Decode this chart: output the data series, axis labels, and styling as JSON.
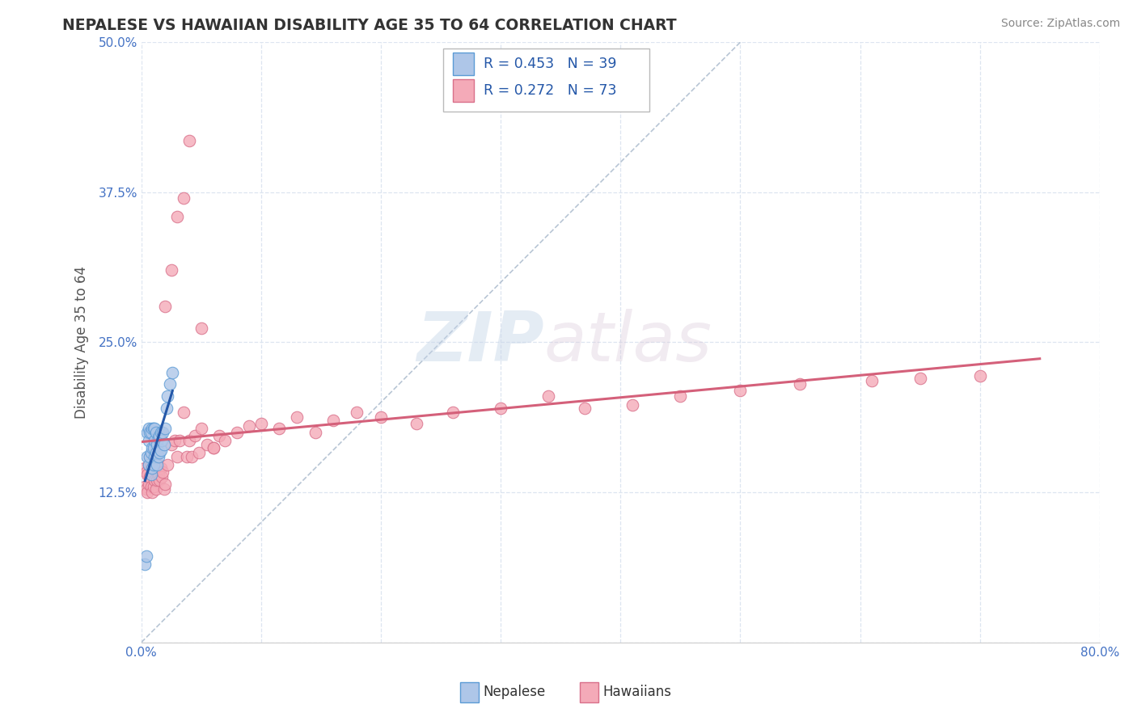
{
  "title": "NEPALESE VS HAWAIIAN DISABILITY AGE 35 TO 64 CORRELATION CHART",
  "source": "Source: ZipAtlas.com",
  "ylabel": "Disability Age 35 to 64",
  "xlim": [
    0.0,
    0.8
  ],
  "ylim": [
    0.0,
    0.5
  ],
  "xticks": [
    0.0,
    0.1,
    0.2,
    0.3,
    0.4,
    0.5,
    0.6,
    0.7,
    0.8
  ],
  "xticklabels": [
    "0.0%",
    "",
    "",
    "",
    "",
    "",
    "",
    "",
    "80.0%"
  ],
  "yticks": [
    0.0,
    0.125,
    0.25,
    0.375,
    0.5
  ],
  "yticklabels": [
    "",
    "12.5%",
    "25.0%",
    "37.5%",
    "50.0%"
  ],
  "nepalese_R": 0.453,
  "nepalese_N": 39,
  "hawaiians_R": 0.272,
  "hawaiians_N": 73,
  "nepalese_color": "#aec6e8",
  "nepalese_edge_color": "#5b9bd5",
  "hawaiians_color": "#f4aab8",
  "hawaiians_edge_color": "#d9708a",
  "nepalese_line_color": "#2457a8",
  "hawaiians_line_color": "#d4607a",
  "ref_line_color": "#b0bfd0",
  "background_color": "#ffffff",
  "grid_color": "#dde5f0",
  "watermark_zip": "ZIP",
  "watermark_atlas": "atlas",
  "nepalese_x": [
    0.003,
    0.004,
    0.005,
    0.005,
    0.006,
    0.006,
    0.006,
    0.007,
    0.007,
    0.008,
    0.008,
    0.008,
    0.009,
    0.009,
    0.009,
    0.01,
    0.01,
    0.01,
    0.011,
    0.011,
    0.011,
    0.012,
    0.012,
    0.013,
    0.013,
    0.014,
    0.014,
    0.015,
    0.015,
    0.016,
    0.016,
    0.017,
    0.018,
    0.019,
    0.02,
    0.021,
    0.022,
    0.024,
    0.026
  ],
  "nepalese_y": [
    0.065,
    0.072,
    0.155,
    0.175,
    0.148,
    0.168,
    0.178,
    0.155,
    0.175,
    0.14,
    0.158,
    0.175,
    0.145,
    0.162,
    0.178,
    0.148,
    0.162,
    0.178,
    0.155,
    0.168,
    0.178,
    0.158,
    0.175,
    0.148,
    0.165,
    0.155,
    0.17,
    0.158,
    0.172,
    0.16,
    0.175,
    0.168,
    0.175,
    0.165,
    0.178,
    0.195,
    0.205,
    0.215,
    0.225
  ],
  "hawaiians_x": [
    0.003,
    0.003,
    0.004,
    0.004,
    0.005,
    0.005,
    0.006,
    0.006,
    0.007,
    0.007,
    0.008,
    0.008,
    0.009,
    0.009,
    0.01,
    0.01,
    0.011,
    0.011,
    0.012,
    0.012,
    0.013,
    0.013,
    0.014,
    0.015,
    0.016,
    0.017,
    0.018,
    0.019,
    0.02,
    0.022,
    0.025,
    0.028,
    0.03,
    0.032,
    0.035,
    0.038,
    0.04,
    0.042,
    0.045,
    0.048,
    0.05,
    0.055,
    0.06,
    0.065,
    0.07,
    0.08,
    0.09,
    0.1,
    0.115,
    0.13,
    0.145,
    0.16,
    0.18,
    0.2,
    0.23,
    0.26,
    0.3,
    0.34,
    0.37,
    0.41,
    0.45,
    0.5,
    0.55,
    0.61,
    0.65,
    0.7,
    0.02,
    0.025,
    0.03,
    0.035,
    0.04,
    0.05,
    0.06
  ],
  "hawaiians_y": [
    0.13,
    0.145,
    0.128,
    0.142,
    0.125,
    0.14,
    0.132,
    0.148,
    0.138,
    0.155,
    0.13,
    0.148,
    0.125,
    0.142,
    0.13,
    0.148,
    0.135,
    0.152,
    0.128,
    0.145,
    0.135,
    0.15,
    0.14,
    0.135,
    0.145,
    0.138,
    0.142,
    0.128,
    0.132,
    0.148,
    0.165,
    0.168,
    0.155,
    0.168,
    0.192,
    0.155,
    0.168,
    0.155,
    0.172,
    0.158,
    0.178,
    0.165,
    0.162,
    0.172,
    0.168,
    0.175,
    0.18,
    0.182,
    0.178,
    0.188,
    0.175,
    0.185,
    0.192,
    0.188,
    0.182,
    0.192,
    0.195,
    0.205,
    0.195,
    0.198,
    0.205,
    0.21,
    0.215,
    0.218,
    0.22,
    0.222,
    0.28,
    0.31,
    0.355,
    0.37,
    0.418,
    0.262,
    0.162
  ]
}
